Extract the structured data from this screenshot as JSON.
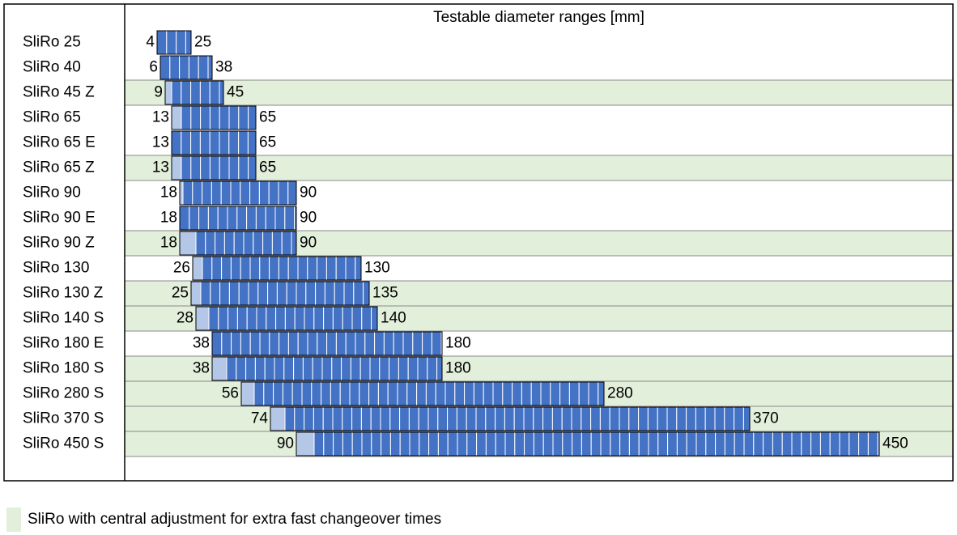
{
  "colors": {
    "main_bar": "#4472C4",
    "light_bar": "#B4C7E7",
    "central_adjust_bg": "#E2EFDA",
    "grid": "#000000"
  },
  "chart_data": {
    "type": "bar",
    "orientation": "horizontal-range",
    "title": "Testable diameter ranges [mm]",
    "xlim": [
      0,
      450
    ],
    "rows": [
      {
        "name": "SliRo 25",
        "min": 4,
        "light_to": 4,
        "max": 25,
        "central": false
      },
      {
        "name": "SliRo 40",
        "min": 6,
        "light_to": 6,
        "max": 38,
        "central": false
      },
      {
        "name": "SliRo 45 Z",
        "min": 9,
        "light_to": 13,
        "max": 45,
        "central": true
      },
      {
        "name": "SliRo 65",
        "min": 13,
        "light_to": 19,
        "max": 65,
        "central": false
      },
      {
        "name": "SliRo 65 E",
        "min": 13,
        "light_to": 13,
        "max": 65,
        "central": false
      },
      {
        "name": "SliRo 65 Z",
        "min": 13,
        "light_to": 19,
        "max": 65,
        "central": true
      },
      {
        "name": "SliRo 90",
        "min": 18,
        "light_to": 20,
        "max": 90,
        "central": false
      },
      {
        "name": "SliRo 90 E",
        "min": 18,
        "light_to": 18,
        "max": 90,
        "central": false
      },
      {
        "name": "SliRo 90 Z",
        "min": 18,
        "light_to": 28,
        "max": 90,
        "central": true
      },
      {
        "name": "SliRo 130",
        "min": 26,
        "light_to": 32,
        "max": 130,
        "central": false
      },
      {
        "name": "SliRo 130 Z",
        "min": 25,
        "light_to": 31,
        "max": 135,
        "central": true
      },
      {
        "name": "SliRo 140 S",
        "min": 28,
        "light_to": 36,
        "max": 140,
        "central": true
      },
      {
        "name": "SliRo 180 E",
        "min": 38,
        "light_to": 38,
        "max": 180,
        "central": false
      },
      {
        "name": "SliRo 180 S",
        "min": 38,
        "light_to": 47,
        "max": 180,
        "central": true
      },
      {
        "name": "SliRo 280 S",
        "min": 56,
        "light_to": 64,
        "max": 280,
        "central": true
      },
      {
        "name": "SliRo 370 S",
        "min": 74,
        "light_to": 83,
        "max": 370,
        "central": true
      },
      {
        "name": "SliRo 450 S",
        "min": 90,
        "light_to": 101,
        "max": 450,
        "central": true
      }
    ]
  },
  "legend": {
    "text": "SliRo with central adjustment for extra fast changeover times"
  }
}
